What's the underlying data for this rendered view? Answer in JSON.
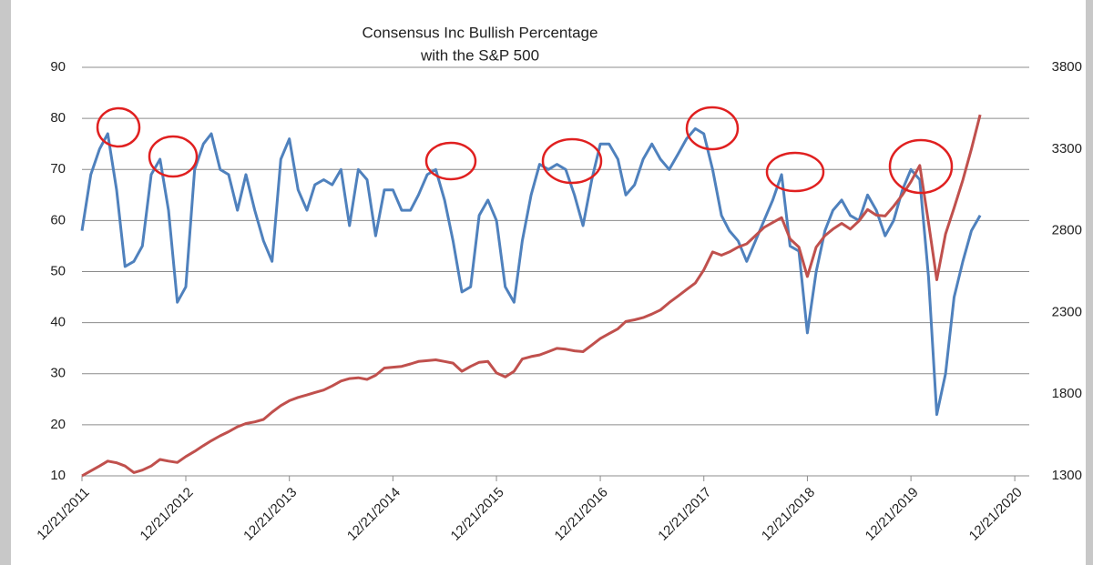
{
  "chart_data": {
    "type": "line",
    "title": "Consensus Inc Bullish Percentage",
    "subtitle": "with the S&P 500",
    "x": [
      "12/21/2011",
      "1/21/2012",
      "2/21/2012",
      "3/21/2012",
      "4/21/2012",
      "5/21/2012",
      "6/21/2012",
      "7/21/2012",
      "8/21/2012",
      "9/21/2012",
      "10/21/2012",
      "11/21/2012",
      "12/21/2012",
      "1/21/2013",
      "2/21/2013",
      "3/21/2013",
      "4/21/2013",
      "5/21/2013",
      "6/21/2013",
      "7/21/2013",
      "8/21/2013",
      "9/21/2013",
      "10/21/2013",
      "11/21/2013",
      "12/21/2013",
      "1/21/2014",
      "2/21/2014",
      "3/21/2014",
      "4/21/2014",
      "5/21/2014",
      "6/21/2014",
      "7/21/2014",
      "8/21/2014",
      "9/21/2014",
      "10/21/2014",
      "11/21/2014",
      "12/21/2014",
      "1/21/2015",
      "2/21/2015",
      "3/21/2015",
      "4/21/2015",
      "5/21/2015",
      "6/21/2015",
      "7/21/2015",
      "8/21/2015",
      "9/21/2015",
      "10/21/2015",
      "11/21/2015",
      "12/21/2015",
      "1/21/2016",
      "2/21/2016",
      "3/21/2016",
      "4/21/2016",
      "5/21/2016",
      "6/21/2016",
      "7/21/2016",
      "8/21/2016",
      "9/21/2016",
      "10/21/2016",
      "11/21/2016",
      "12/21/2016",
      "1/21/2017",
      "2/21/2017",
      "3/21/2017",
      "4/21/2017",
      "5/21/2017",
      "6/21/2017",
      "7/21/2017",
      "8/21/2017",
      "9/21/2017",
      "10/21/2017",
      "11/21/2017",
      "12/21/2017",
      "1/21/2018",
      "2/21/2018",
      "3/21/2018",
      "4/21/2018",
      "5/21/2018",
      "6/21/2018",
      "7/21/2018",
      "8/21/2018",
      "9/21/2018",
      "10/21/2018",
      "11/21/2018",
      "12/21/2018",
      "1/21/2019",
      "2/21/2019",
      "3/21/2019",
      "4/21/2019",
      "5/21/2019",
      "6/21/2019",
      "7/21/2019",
      "8/21/2019",
      "9/21/2019",
      "10/21/2019",
      "11/21/2019",
      "12/21/2019",
      "1/21/2020",
      "2/21/2020",
      "3/21/2020",
      "4/21/2020",
      "5/21/2020",
      "6/21/2020",
      "7/21/2020",
      "8/21/2020"
    ],
    "series": [
      {
        "color": "#4f81bd",
        "values": [
          58,
          69,
          74,
          77,
          66,
          51,
          52,
          55,
          69,
          72,
          62,
          44,
          47,
          70,
          75,
          77,
          70,
          69,
          62,
          69,
          62,
          56,
          52,
          72,
          76,
          66,
          62,
          67,
          68,
          67,
          70,
          59,
          70,
          68,
          57,
          66,
          66,
          62,
          62,
          65,
          69,
          70,
          64,
          56,
          46,
          47,
          61,
          64,
          60,
          47,
          44,
          56,
          65,
          71,
          70,
          71,
          70,
          65,
          59,
          68,
          75,
          75,
          72,
          65,
          67,
          72,
          75,
          72,
          70,
          73,
          76,
          78,
          77,
          70,
          61,
          58,
          56,
          52,
          56,
          60,
          64,
          69,
          55,
          54,
          38,
          50,
          58,
          62,
          64,
          61,
          60,
          65,
          62,
          57,
          60,
          66,
          70,
          68,
          49,
          22,
          30,
          45,
          52,
          58,
          61
        ]
      },
      {
        "color": "#c0504d",
        "axis": "y2",
        "values": [
          1300,
          1330,
          1360,
          1390,
          1380,
          1360,
          1320,
          1335,
          1360,
          1400,
          1390,
          1382,
          1418,
          1450,
          1485,
          1515,
          1545,
          1570,
          1600,
          1620,
          1630,
          1645,
          1690,
          1730,
          1760,
          1780,
          1795,
          1810,
          1825,
          1850,
          1880,
          1895,
          1900,
          1890,
          1915,
          1960,
          1965,
          1970,
          1985,
          2000,
          2005,
          2010,
          2000,
          1990,
          1940,
          1970,
          1995,
          2000,
          1930,
          1905,
          1940,
          2015,
          2030,
          2040,
          2060,
          2080,
          2075,
          2065,
          2060,
          2100,
          2140,
          2170,
          2200,
          2245,
          2255,
          2268,
          2290,
          2315,
          2360,
          2400,
          2440,
          2480,
          2560,
          2670,
          2650,
          2670,
          2700,
          2720,
          2770,
          2820,
          2850,
          2880,
          2750,
          2700,
          2520,
          2700,
          2770,
          2810,
          2845,
          2810,
          2860,
          2930,
          2895,
          2890,
          2950,
          3020,
          3100,
          3200,
          2850,
          2500,
          2780,
          2940,
          3110,
          3300,
          3510
        ]
      }
    ],
    "xlim": [
      "12/21/2011",
      "2/10/2021"
    ],
    "xticks": [
      "12/21/2011",
      "12/21/2012",
      "12/21/2013",
      "12/21/2014",
      "12/21/2015",
      "12/21/2016",
      "12/21/2017",
      "12/21/2018",
      "12/21/2019",
      "12/21/2020"
    ],
    "ylim": [
      10,
      90
    ],
    "yticks": [
      10,
      20,
      30,
      40,
      50,
      60,
      70,
      80,
      90
    ],
    "y2lim": [
      1300,
      3800
    ],
    "y2ticks": [
      1300,
      1800,
      2300,
      2800,
      3300,
      3800
    ],
    "grid": true
  }
}
